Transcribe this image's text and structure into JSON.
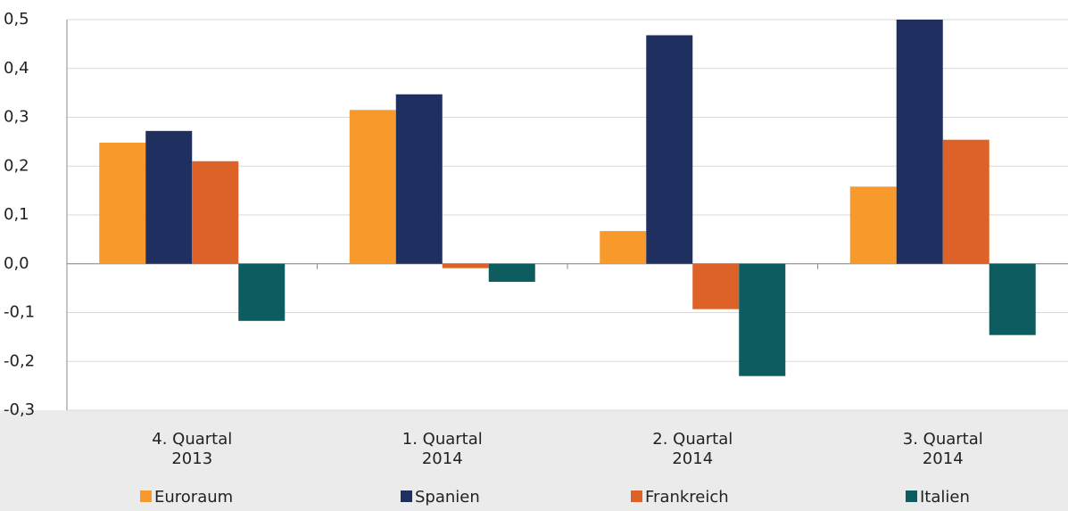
{
  "chart_data": {
    "type": "bar",
    "categories": [
      [
        "4. Quartal",
        "2013"
      ],
      [
        "1. Quartal",
        "2014"
      ],
      [
        "2. Quartal",
        "2014"
      ],
      [
        "3. Quartal",
        "2014"
      ]
    ],
    "series": [
      {
        "name": "Euroraum",
        "color": "#f7992b",
        "values": [
          0.248,
          0.315,
          0.067,
          0.158
        ]
      },
      {
        "name": "Spanien",
        "color": "#1f2f5f",
        "values": [
          0.272,
          0.347,
          0.468,
          0.5
        ]
      },
      {
        "name": "Frankreich",
        "color": "#dd6227",
        "values": [
          0.21,
          -0.009,
          -0.093,
          0.254
        ]
      },
      {
        "name": "Italien",
        "color": "#0d5c60",
        "values": [
          -0.117,
          -0.037,
          -0.23,
          -0.146
        ]
      }
    ],
    "ylim": [
      -0.3,
      0.5
    ],
    "yticks": [
      {
        "value": -0.3,
        "label": "-0,3"
      },
      {
        "value": -0.2,
        "label": "-0,2"
      },
      {
        "value": -0.1,
        "label": "-0,1"
      },
      {
        "value": 0,
        "label": "0,0"
      },
      {
        "value": 0.1,
        "label": "0,1"
      },
      {
        "value": 0.2,
        "label": "0,2"
      },
      {
        "value": 0.3,
        "label": "0,3"
      },
      {
        "value": 0.4,
        "label": "0,4"
      },
      {
        "value": 0.5,
        "label": "0,5"
      }
    ],
    "grid": true,
    "legend": "bottom"
  }
}
